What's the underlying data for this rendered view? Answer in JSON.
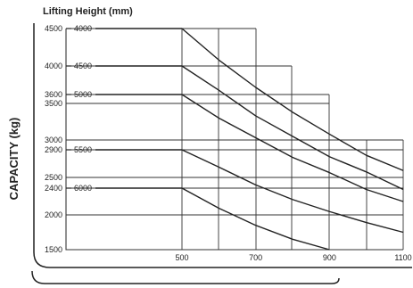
{
  "chart_data": {
    "type": "line",
    "title": "Lifting Height (mm)",
    "xlabel": "",
    "ylabel": "CAPACITY (kg)",
    "x_ticks": [
      500,
      700,
      900,
      1100
    ],
    "y_ticks": [
      4500,
      4000,
      3600,
      3500,
      3000,
      2900,
      2500,
      2400,
      2000,
      1500
    ],
    "xlim": [
      200,
      1100
    ],
    "ylim": [
      1500,
      4500
    ],
    "grid": true,
    "series": [
      {
        "name": "4000",
        "x": [
          200,
          500,
          600,
          700,
          800,
          900,
          1000,
          1100
        ],
        "y": [
          4500,
          4500,
          4080,
          3700,
          3380,
          3080,
          2820,
          2600
        ]
      },
      {
        "name": "4500",
        "x": [
          200,
          500,
          600,
          700,
          800,
          900,
          1000,
          1100
        ],
        "y": [
          4000,
          4000,
          3660,
          3330,
          3050,
          2800,
          2580,
          2380
        ]
      },
      {
        "name": "5000",
        "x": [
          200,
          500,
          600,
          700,
          800,
          900,
          1000,
          1100
        ],
        "y": [
          3600,
          3600,
          3300,
          3030,
          2790,
          2570,
          2380,
          2200
        ]
      },
      {
        "name": "5500",
        "x": [
          200,
          500,
          600,
          700,
          800,
          900,
          1000,
          1100
        ],
        "y": [
          2900,
          2900,
          2650,
          2430,
          2230,
          2050,
          1890,
          1750
        ]
      },
      {
        "name": "6000",
        "x": [
          200,
          500,
          600,
          700,
          800,
          900
        ],
        "y": [
          2400,
          2400,
          2100,
          1850,
          1650,
          1500
        ]
      }
    ]
  }
}
